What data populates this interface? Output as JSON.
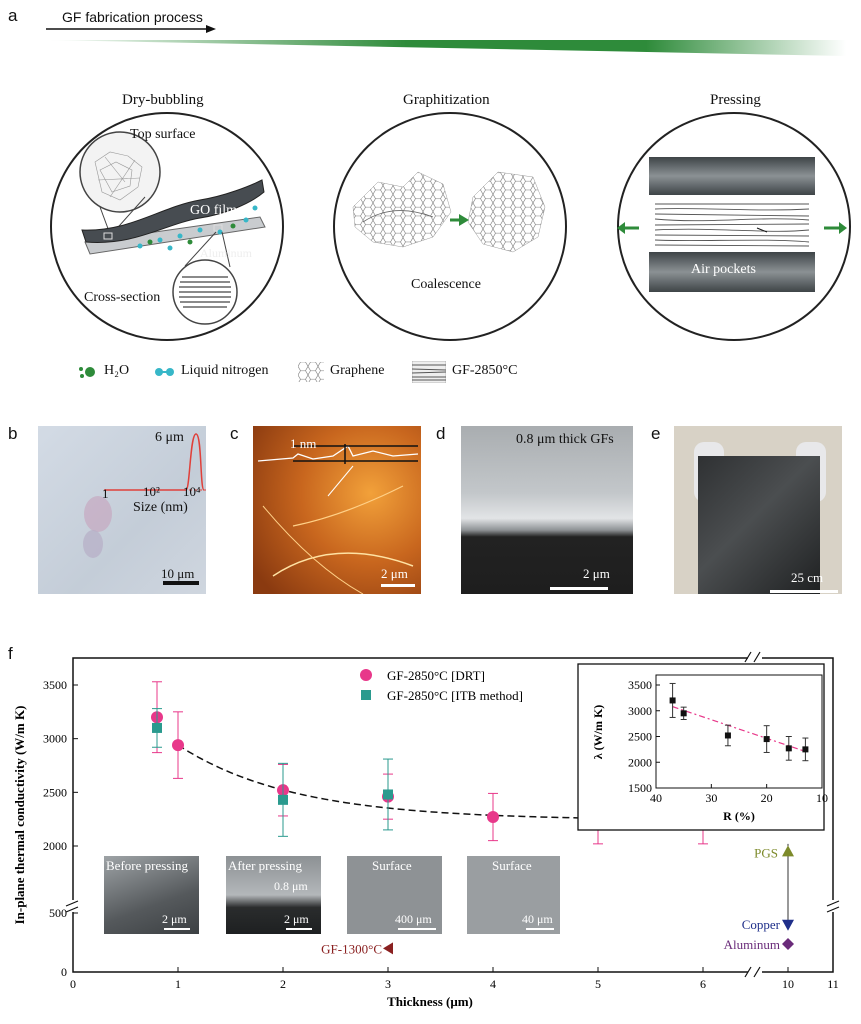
{
  "panel_a": {
    "letter": "a",
    "process_title": "GF fabrication process",
    "steps": {
      "dry_bubbling": "Dry-bubbling",
      "graphitization": "Graphitization",
      "pressing": "Pressing"
    },
    "labels": {
      "top_surface": "Top surface",
      "go_film": "GO film",
      "aluminum": "Aluminum",
      "cross_section": "Cross-section",
      "coalescence": "Coalescence",
      "air_pockets": "Air pockets"
    },
    "legend": {
      "h2o": "H₂O",
      "liquid_nitrogen": "Liquid nitrogen",
      "graphene": "Graphene",
      "gf": "GF-2850°C"
    },
    "colors": {
      "green_arrow": "#2e8b3a",
      "cyan": "#37b7c8",
      "film": "#4a4f54"
    }
  },
  "panel_b": {
    "letter": "b",
    "peak": "6 μm",
    "xlabel": "Size (nm)",
    "ticks": [
      "1",
      "10²",
      "10⁴"
    ],
    "scale": "10 μm"
  },
  "panel_c": {
    "letter": "c",
    "height": "1 nm",
    "scale": "2 μm"
  },
  "panel_d": {
    "letter": "d",
    "caption": "0.8 μm thick GFs",
    "scale": "2 μm"
  },
  "panel_e": {
    "letter": "e",
    "scale": "25 cm"
  },
  "panel_f": {
    "letter": "f",
    "insets": [
      {
        "title": "Before pressing",
        "scale": "2 μm",
        "extra": ""
      },
      {
        "title": "After pressing",
        "scale": "2 μm",
        "extra": "0.8 μm"
      },
      {
        "title": "Surface",
        "scale": "400 μm",
        "extra": ""
      },
      {
        "title": "Surface",
        "scale": "40 μm",
        "extra": ""
      }
    ],
    "annotations": {
      "gf1300": "GF-1300°C",
      "pgs": "PGS",
      "copper": "Copper",
      "aluminum": "Aluminum"
    },
    "colors": {
      "drt": "#e8388a",
      "itb": "#2a9a8e",
      "pgs": "#7d8a2a",
      "copper": "#1f2f8a",
      "aluminum": "#6a2b7a",
      "gf1300": "#8a2020"
    }
  },
  "chart_data": [
    {
      "type": "scatter",
      "xlabel": "Thickness (μm)",
      "ylabel": "In-plane thermal conductivity (W/m K)",
      "xlim": [
        0,
        11
      ],
      "ylim": [
        0,
        3600
      ],
      "x_ticks": [
        "0",
        "1",
        "2",
        "3",
        "4",
        "5",
        "6",
        "10",
        "11"
      ],
      "y_ticks": [
        "0",
        "500",
        "2000",
        "2500",
        "3000",
        "3500"
      ],
      "axis_breaks": "x between 6.8 and 9.5; y between 700 and 1900",
      "series": [
        {
          "name": "GF-2850°C [DRT]",
          "marker": "circle",
          "color": "#e8388a",
          "points": [
            {
              "x": 0.8,
              "y": 3200,
              "err": 330
            },
            {
              "x": 1.0,
              "y": 2940,
              "err": 310
            },
            {
              "x": 2.0,
              "y": 2520,
              "err": 240
            },
            {
              "x": 3.0,
              "y": 2460,
              "err": 210
            },
            {
              "x": 4.0,
              "y": 2270,
              "err": 220
            },
            {
              "x": 5.0,
              "y": 2250,
              "err": 230
            },
            {
              "x": 6.0,
              "y": 2240,
              "err": 220
            }
          ]
        },
        {
          "name": "GF-2850°C [ITB method]",
          "marker": "square",
          "color": "#2a9a8e",
          "points": [
            {
              "x": 0.8,
              "y": 3100,
              "err": 180
            },
            {
              "x": 2.0,
              "y": 2430,
              "err": 340
            },
            {
              "x": 3.0,
              "y": 2480,
              "err": 330
            }
          ]
        }
      ],
      "points_other": [
        {
          "label": "PGS",
          "x": 10,
          "y": 1950,
          "err": 70
        },
        {
          "label": "Copper",
          "x": 10,
          "y": 400
        },
        {
          "label": "Aluminum",
          "x": 10,
          "y": 237
        },
        {
          "label": "GF-1300°C",
          "x": 3,
          "y": 200
        }
      ],
      "fit": "dashed decay curve through DRT points"
    },
    {
      "type": "scatter",
      "xlabel": "R (%)",
      "ylabel": "λ (W/m K)",
      "xlim": [
        40,
        10
      ],
      "ylim": [
        1500,
        3600
      ],
      "x_ticks": [
        "40",
        "30",
        "20",
        "10"
      ],
      "y_ticks": [
        "1500",
        "2000",
        "2500",
        "3000",
        "3500"
      ],
      "points": [
        {
          "x": 37,
          "y": 3200,
          "err": 330
        },
        {
          "x": 35,
          "y": 2950,
          "err": 120
        },
        {
          "x": 27,
          "y": 2520,
          "err": 200
        },
        {
          "x": 20,
          "y": 2450,
          "err": 260
        },
        {
          "x": 16,
          "y": 2270,
          "err": 230
        },
        {
          "x": 13,
          "y": 2250,
          "err": 220
        }
      ],
      "fit": "linear dash-dot"
    }
  ]
}
